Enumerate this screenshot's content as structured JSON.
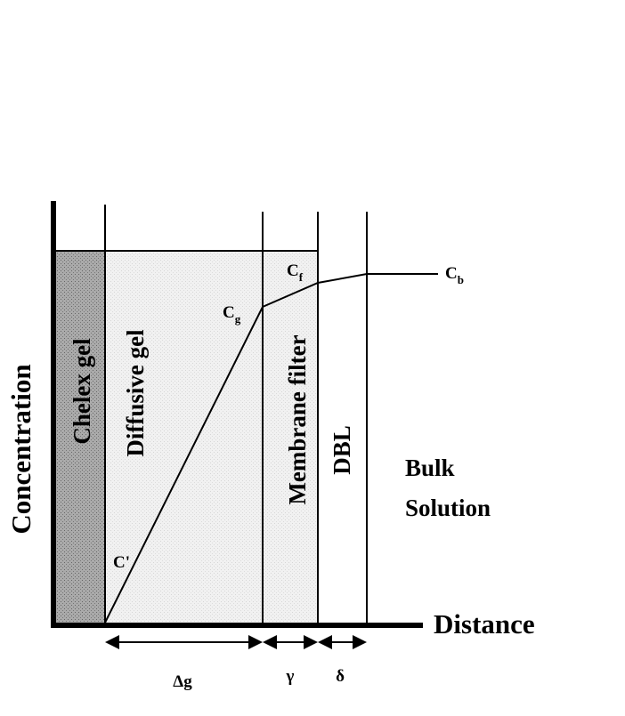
{
  "axes": {
    "y_label": "Concentration",
    "x_label": "Distance"
  },
  "regions": [
    {
      "label": "Chelex gel"
    },
    {
      "label": "Diffusive gel"
    },
    {
      "label": "Membrane filter"
    },
    {
      "label": "DBL"
    }
  ],
  "bulk": {
    "lines": [
      "Bulk",
      "Solution"
    ]
  },
  "points": [
    {
      "main": "C",
      "sub": "g"
    },
    {
      "main": "C",
      "sub": "f"
    },
    {
      "main": "C",
      "sub": "b"
    },
    {
      "main": "C'"
    }
  ],
  "widths": [
    "Δg",
    "γ",
    "δ"
  ]
}
